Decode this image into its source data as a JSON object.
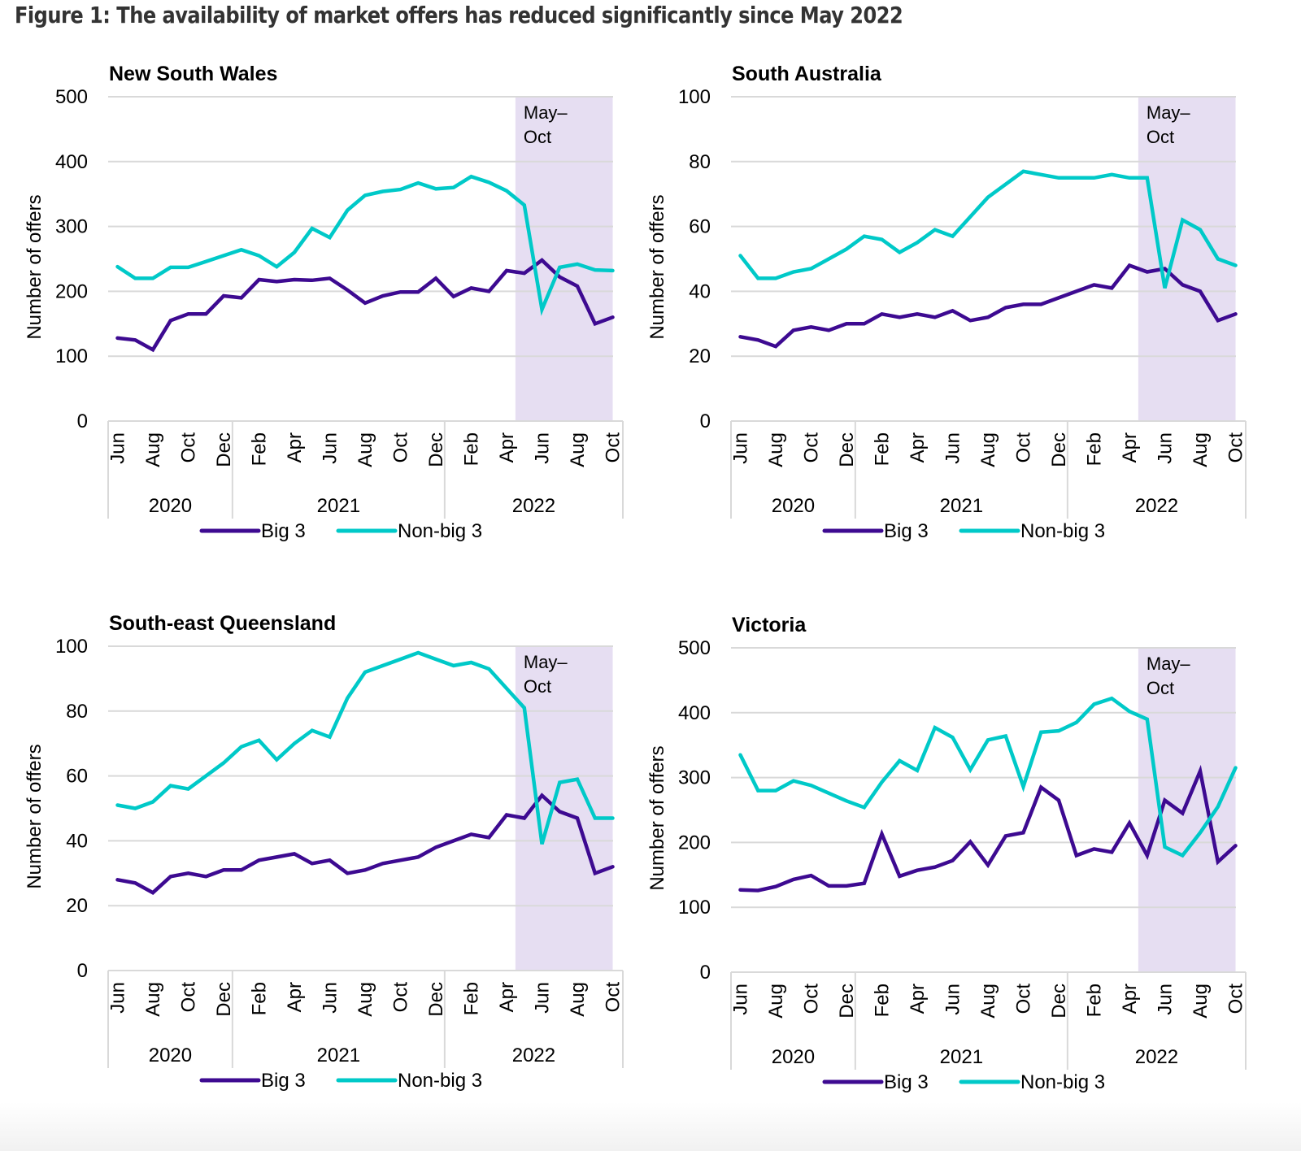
{
  "figure_title": "Figure 1: The availability of market offers has reduced significantly since May 2022",
  "colors": {
    "big3": "#3d0a91",
    "non_big3": "#00c9c8",
    "shade": "#e6def2",
    "grid": "#d9d9d9"
  },
  "chart_data": [
    {
      "type": "line",
      "title": "New South Wales",
      "ylabel": "Number of offers",
      "xlabel": "",
      "ylim": [
        0,
        500
      ],
      "yticks": [
        0,
        100,
        200,
        300,
        400,
        500
      ],
      "grid": true,
      "legend": "bottom-center",
      "x": [
        "Jun 2020",
        "Jul 2020",
        "Aug 2020",
        "Sep 2020",
        "Oct 2020",
        "Nov 2020",
        "Dec 2020",
        "Jan 2021",
        "Feb 2021",
        "Mar 2021",
        "Apr 2021",
        "May 2021",
        "Jun 2021",
        "Jul 2021",
        "Aug 2021",
        "Sep 2021",
        "Oct 2021",
        "Nov 2021",
        "Dec 2021",
        "Jan 2022",
        "Feb 2022",
        "Mar 2022",
        "Apr 2022",
        "May 2022",
        "Jun 2022",
        "Jul 2022",
        "Aug 2022",
        "Sep 2022",
        "Oct 2022"
      ],
      "tick_labels": [
        "Jun",
        "Aug",
        "Oct",
        "Dec",
        "Feb",
        "Apr",
        "Jun",
        "Aug",
        "Oct",
        "Dec",
        "Feb",
        "Apr",
        "Jun",
        "Aug",
        "Oct"
      ],
      "year_groups": [
        {
          "label": "2020",
          "from": 0,
          "to": 6
        },
        {
          "label": "2021",
          "from": 7,
          "to": 18
        },
        {
          "label": "2022",
          "from": 19,
          "to": 28
        }
      ],
      "shaded_region": {
        "label_line1": "May–",
        "label_line2": "Oct",
        "from": 23,
        "to": 28
      },
      "series": [
        {
          "name": "Big 3",
          "values": [
            128,
            125,
            110,
            155,
            165,
            165,
            193,
            190,
            218,
            215,
            218,
            217,
            220,
            202,
            182,
            193,
            199,
            199,
            220,
            192,
            205,
            200,
            232,
            228,
            248,
            222,
            208,
            150,
            160
          ]
        },
        {
          "name": "Non-big 3",
          "values": [
            238,
            220,
            220,
            237,
            237,
            246,
            255,
            264,
            255,
            238,
            260,
            297,
            283,
            325,
            348,
            354,
            357,
            367,
            358,
            360,
            377,
            368,
            355,
            333,
            172,
            237,
            242,
            233,
            232
          ]
        }
      ]
    },
    {
      "type": "line",
      "title": "South Australia",
      "ylabel": "Number of offers",
      "xlabel": "",
      "ylim": [
        0,
        100
      ],
      "yticks": [
        0,
        20,
        40,
        60,
        80,
        100
      ],
      "grid": true,
      "legend": "bottom-center",
      "x": [
        "Jun 2020",
        "Jul 2020",
        "Aug 2020",
        "Sep 2020",
        "Oct 2020",
        "Nov 2020",
        "Dec 2020",
        "Jan 2021",
        "Feb 2021",
        "Mar 2021",
        "Apr 2021",
        "May 2021",
        "Jun 2021",
        "Jul 2021",
        "Aug 2021",
        "Sep 2021",
        "Oct 2021",
        "Nov 2021",
        "Dec 2021",
        "Jan 2022",
        "Feb 2022",
        "Mar 2022",
        "Apr 2022",
        "May 2022",
        "Jun 2022",
        "Jul 2022",
        "Aug 2022",
        "Sep 2022",
        "Oct 2022"
      ],
      "tick_labels": [
        "Jun",
        "Aug",
        "Oct",
        "Dec",
        "Feb",
        "Apr",
        "Jun",
        "Aug",
        "Oct",
        "Dec",
        "Feb",
        "Apr",
        "Jun",
        "Aug",
        "Oct"
      ],
      "year_groups": [
        {
          "label": "2020",
          "from": 0,
          "to": 6
        },
        {
          "label": "2021",
          "from": 7,
          "to": 18
        },
        {
          "label": "2022",
          "from": 19,
          "to": 28
        }
      ],
      "shaded_region": {
        "label_line1": "May–",
        "label_line2": "Oct",
        "from": 23,
        "to": 28
      },
      "series": [
        {
          "name": "Big 3",
          "values": [
            26,
            25,
            23,
            28,
            29,
            28,
            30,
            30,
            33,
            32,
            33,
            32,
            34,
            31,
            32,
            35,
            36,
            36,
            38,
            40,
            42,
            41,
            48,
            46,
            47,
            42,
            40,
            31,
            33
          ]
        },
        {
          "name": "Non-big 3",
          "values": [
            51,
            44,
            44,
            46,
            47,
            50,
            53,
            57,
            56,
            52,
            55,
            59,
            57,
            63,
            69,
            73,
            77,
            76,
            75,
            75,
            75,
            76,
            75,
            75,
            41,
            62,
            59,
            50,
            48
          ]
        }
      ]
    },
    {
      "type": "line",
      "title": "South-east Queensland",
      "ylabel": "Number of offers",
      "xlabel": "",
      "ylim": [
        0,
        100
      ],
      "yticks": [
        0,
        20,
        40,
        60,
        80,
        100
      ],
      "grid": true,
      "legend": "bottom-center",
      "x": [
        "Jun 2020",
        "Jul 2020",
        "Aug 2020",
        "Sep 2020",
        "Oct 2020",
        "Nov 2020",
        "Dec 2020",
        "Jan 2021",
        "Feb 2021",
        "Mar 2021",
        "Apr 2021",
        "May 2021",
        "Jun 2021",
        "Jul 2021",
        "Aug 2021",
        "Sep 2021",
        "Oct 2021",
        "Nov 2021",
        "Dec 2021",
        "Jan 2022",
        "Feb 2022",
        "Mar 2022",
        "Apr 2022",
        "May 2022",
        "Jun 2022",
        "Jul 2022",
        "Aug 2022",
        "Sep 2022",
        "Oct 2022"
      ],
      "tick_labels": [
        "Jun",
        "Aug",
        "Oct",
        "Dec",
        "Feb",
        "Apr",
        "Jun",
        "Aug",
        "Oct",
        "Dec",
        "Feb",
        "Apr",
        "Jun",
        "Aug",
        "Oct"
      ],
      "year_groups": [
        {
          "label": "2020",
          "from": 0,
          "to": 6
        },
        {
          "label": "2021",
          "from": 7,
          "to": 18
        },
        {
          "label": "2022",
          "from": 19,
          "to": 28
        }
      ],
      "shaded_region": {
        "label_line1": "May–",
        "label_line2": "Oct",
        "from": 23,
        "to": 28
      },
      "series": [
        {
          "name": "Big 3",
          "values": [
            28,
            27,
            24,
            29,
            30,
            29,
            31,
            31,
            34,
            35,
            36,
            33,
            34,
            30,
            31,
            33,
            34,
            35,
            38,
            40,
            42,
            41,
            48,
            47,
            54,
            49,
            47,
            30,
            32
          ]
        },
        {
          "name": "Non-big 3",
          "values": [
            51,
            50,
            52,
            57,
            56,
            60,
            64,
            69,
            71,
            65,
            70,
            74,
            72,
            84,
            92,
            94,
            96,
            98,
            96,
            94,
            95,
            93,
            87,
            81,
            39,
            58,
            59,
            47,
            47
          ]
        }
      ]
    },
    {
      "type": "line",
      "title": "Victoria",
      "ylabel": "Number of offers",
      "xlabel": "",
      "ylim": [
        0,
        500
      ],
      "yticks": [
        0,
        100,
        200,
        300,
        400,
        500
      ],
      "grid": true,
      "legend": "bottom-center",
      "x": [
        "Jun 2020",
        "Jul 2020",
        "Aug 2020",
        "Sep 2020",
        "Oct 2020",
        "Nov 2020",
        "Dec 2020",
        "Jan 2021",
        "Feb 2021",
        "Mar 2021",
        "Apr 2021",
        "May 2021",
        "Jun 2021",
        "Jul 2021",
        "Aug 2021",
        "Sep 2021",
        "Oct 2021",
        "Nov 2021",
        "Dec 2021",
        "Jan 2022",
        "Feb 2022",
        "Mar 2022",
        "Apr 2022",
        "May 2022",
        "Jun 2022",
        "Jul 2022",
        "Aug 2022",
        "Sep 2022",
        "Oct 2022"
      ],
      "tick_labels": [
        "Jun",
        "Aug",
        "Oct",
        "Dec",
        "Feb",
        "Apr",
        "Jun",
        "Aug",
        "Oct",
        "Dec",
        "Feb",
        "Apr",
        "Jun",
        "Aug",
        "Oct"
      ],
      "year_groups": [
        {
          "label": "2020",
          "from": 0,
          "to": 6
        },
        {
          "label": "2021",
          "from": 7,
          "to": 18
        },
        {
          "label": "2022",
          "from": 19,
          "to": 28
        }
      ],
      "shaded_region": {
        "label_line1": "May–",
        "label_line2": "Oct",
        "from": 23,
        "to": 28
      },
      "series": [
        {
          "name": "Big 3",
          "values": [
            127,
            126,
            132,
            143,
            149,
            133,
            133,
            137,
            213,
            148,
            157,
            162,
            172,
            201,
            165,
            210,
            215,
            285,
            265,
            180,
            190,
            185,
            230,
            180,
            265,
            245,
            310,
            170,
            195
          ]
        },
        {
          "name": "Non-big 3",
          "values": [
            335,
            280,
            280,
            295,
            288,
            276,
            264,
            254,
            293,
            326,
            311,
            377,
            362,
            312,
            358,
            364,
            286,
            370,
            372,
            385,
            413,
            422,
            402,
            390,
            193,
            180,
            215,
            255,
            315
          ]
        }
      ]
    }
  ]
}
